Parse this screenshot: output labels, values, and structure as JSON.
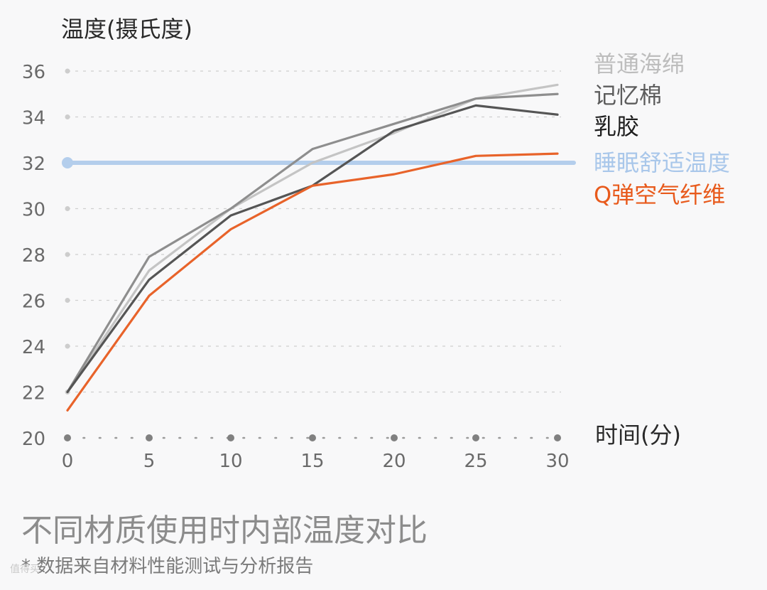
{
  "chart_data": {
    "type": "line",
    "ylabel": "温度(摄氏度)",
    "xlabel": "时间(分)",
    "x": [
      0,
      5,
      10,
      15,
      20,
      25,
      30
    ],
    "xlim": [
      0,
      30
    ],
    "ylim": [
      20,
      36
    ],
    "yticks": [
      20,
      22,
      24,
      26,
      28,
      30,
      32,
      34,
      36
    ],
    "grid": "horizontal dashed",
    "legend_position": "right",
    "series": [
      {
        "name": "普通海绵",
        "color": "#c4c4c4",
        "values": [
          22.0,
          27.3,
          30.0,
          32.0,
          33.3,
          34.8,
          35.4
        ]
      },
      {
        "name": "记忆棉",
        "color": "#8e8e8e",
        "values": [
          22.0,
          27.9,
          30.0,
          32.6,
          33.7,
          34.8,
          35.0
        ]
      },
      {
        "name": "乳胶",
        "color": "#555555",
        "values": [
          22.0,
          26.9,
          29.7,
          31.0,
          33.4,
          34.5,
          34.1
        ]
      },
      {
        "name": "Q弹空气纤维",
        "color": "#e8632a",
        "values": [
          21.2,
          26.2,
          29.1,
          31.0,
          31.5,
          32.3,
          32.4
        ]
      }
    ],
    "reference_line": {
      "name": "睡眠舒适温度",
      "value": 32,
      "color": "#b4ceec"
    }
  },
  "caption": "不同材质使用时内部温度对比",
  "footnote": "* 数据来自材料性能测试与分析报告",
  "watermark": "值得买"
}
